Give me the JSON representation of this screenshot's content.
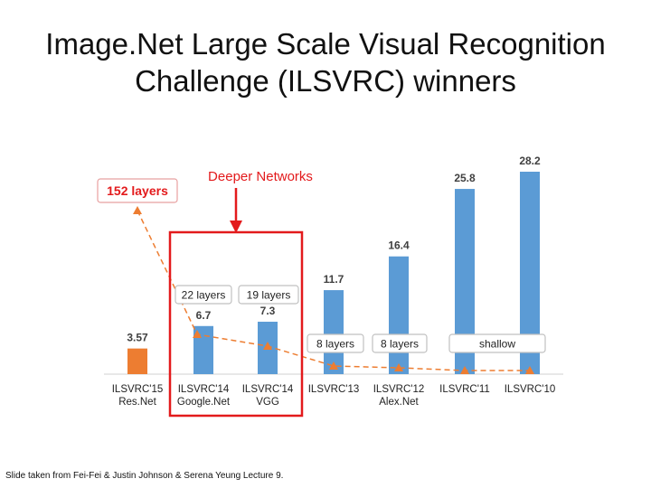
{
  "title": {
    "line1": "Image.Net Large Scale Visual Recognition",
    "line2": "Challenge (ILSVRC) winners"
  },
  "footer": "Slide taken from Fei-Fei & Justin Johnson & Serena Yeung Lecture 9.",
  "chart_data": {
    "type": "bar",
    "categories": [
      [
        "ILSVRC'15",
        "Res.Net"
      ],
      [
        "ILSVRC'14",
        "Google.Net"
      ],
      [
        "ILSVRC'14",
        "VGG"
      ],
      [
        "ILSVRC'13"
      ],
      [
        "ILSVRC'12",
        "Alex.Net"
      ],
      [
        "ILSVRC'11"
      ],
      [
        "ILSVRC'10"
      ]
    ],
    "values": [
      3.57,
      6.7,
      7.3,
      11.7,
      16.4,
      25.8,
      28.2
    ],
    "value_labels": [
      "3.57",
      "6.7",
      "7.3",
      "11.7",
      "16.4",
      "25.8",
      "28.2"
    ],
    "bar_colors": [
      "#ed7d31",
      "#5b9bd5",
      "#5b9bd5",
      "#5b9bd5",
      "#5b9bd5",
      "#5b9bd5",
      "#5b9bd5"
    ],
    "layer_labels": [
      {
        "text": "152 layers",
        "category_index": 0
      },
      {
        "text": "22 layers",
        "category_index": 1
      },
      {
        "text": "19 layers",
        "category_index": 2
      },
      {
        "text": "8 layers",
        "category_index": 3
      },
      {
        "text": "8 layers",
        "category_index": 4
      },
      {
        "text": "shallow",
        "category_index": 5
      }
    ],
    "annotation": "Deeper Networks",
    "highlight_color": "#e31a1c",
    "depth_line_color": "#ed7d31",
    "ylim": [
      0,
      30
    ],
    "grid": false,
    "legend": "none"
  }
}
